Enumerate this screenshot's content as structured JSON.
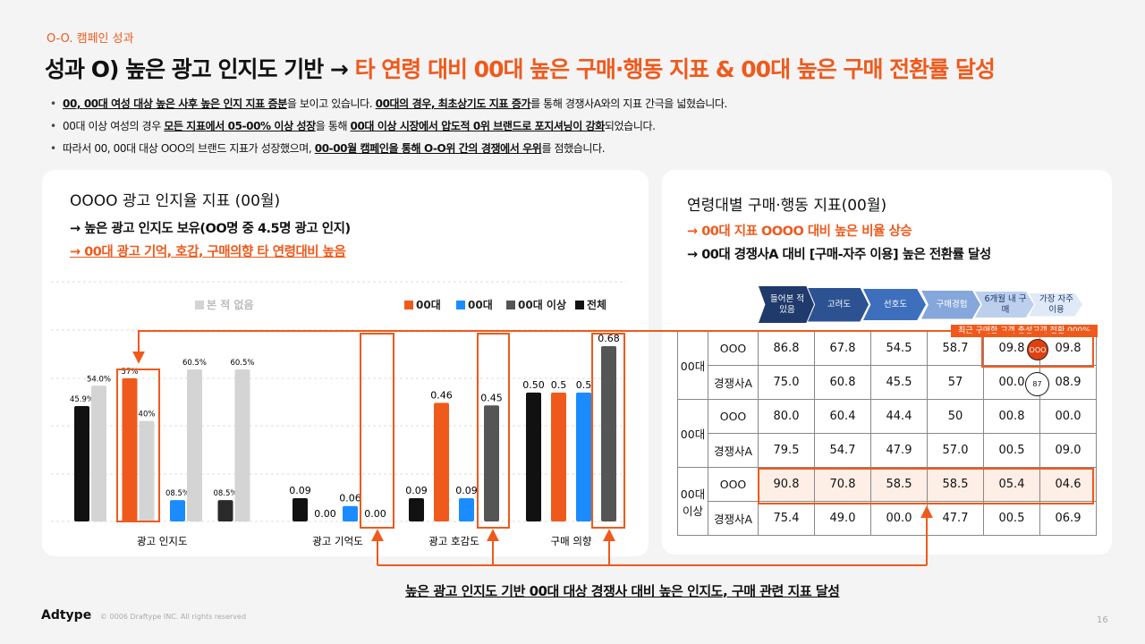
{
  "header": {
    "tag": "O-O. 캠페인 성과",
    "title": [
      {
        "text": "성과 O) 높은 광고 인지도 기반 → ",
        "accent": false
      },
      {
        "text": "타 연령 대비 00대 높은 구매·행동 지표 & 00대 높은 구매 전환률 달성",
        "accent": true
      }
    ]
  },
  "bullets": [
    [
      {
        "text": "00, 00대 여성 대상 높은 사후 높은 인지 지표 증분",
        "strong": true
      },
      {
        "text": "을 보이고 있습니다. ",
        "strong": false
      },
      {
        "text": "00대의 경우, 최초상기도 지표 증가",
        "strong": true
      },
      {
        "text": "를 통해 경쟁사A와의 지표 간극을 넓혔습니다.",
        "strong": false
      }
    ],
    [
      {
        "text": "00대 이상 여성의 경우 ",
        "strong": false
      },
      {
        "text": "모든 지표에서 05-00% 이상 성장",
        "strong": true
      },
      {
        "text": "을 통해 ",
        "strong": false
      },
      {
        "text": "00대 이상 시장에서 압도적 0위 브랜드로 포지셔닝이 강화",
        "strong": true
      },
      {
        "text": "되었습니다.",
        "strong": false
      }
    ],
    [
      {
        "text": "따라서 00, 00대 대상 OOO의 브랜드 지표가 성장했으며, ",
        "strong": false
      },
      {
        "text": "00-00월 캠페인을 통해 O-O위 간의 경쟁에서 우위",
        "strong": true
      },
      {
        "text": "를 점했습니다.",
        "strong": false
      }
    ]
  ],
  "left_card": {
    "title": "OOOO 광고 인지율 지표 (00월)",
    "lines": [
      {
        "text": "→ 높은 광고 인지도 보유(OO명 중 4.5명 광고 인지)",
        "accent": false
      },
      {
        "text": "→ 00대 광고 기억, 호감, 구매의향 타 연령대비 높음",
        "accent": true
      }
    ]
  },
  "chart_data": {
    "type": "bar",
    "legend": [
      {
        "name": "본 적 없음",
        "color": "#d4d4d4"
      },
      {
        "name": "00대",
        "color": "#ef5a1c"
      },
      {
        "name": "00대",
        "color": "#1a8cff"
      },
      {
        "name": "00대 이상",
        "color": "#555555"
      },
      {
        "name": "전체",
        "color": "#111111"
      }
    ],
    "groups": [
      {
        "category": "광고 인지도",
        "colors": [
          "#111111",
          "#d4d4d4",
          "#ef5a1c",
          "#d4d4d4",
          "#1a8cff",
          "#d4d4d4",
          "#2a2a2a",
          "#d4d4d4"
        ],
        "values": [
          45.9,
          54.0,
          57,
          40,
          8.5,
          60.5,
          8.5,
          60.5
        ],
        "value_labels": [
          "45.9%",
          "54.0%",
          "57%",
          "40%",
          "08.5%",
          "60.5%",
          "08.5%",
          "60.5%"
        ]
      },
      {
        "category": "광고 기억도",
        "colors": [
          "#111111",
          "#ef5a1c",
          "#1a8cff",
          "#555555"
        ],
        "values": [
          0.09,
          0,
          0.06,
          0
        ],
        "value_labels": [
          "0.09",
          "0.00",
          "0.06",
          "0.00"
        ]
      },
      {
        "category": "광고 호감도",
        "colors": [
          "#111111",
          "#ef5a1c",
          "#1a8cff",
          "#555555"
        ],
        "values": [
          0.09,
          0.46,
          0.09,
          0.45
        ],
        "value_labels": [
          "0.09",
          "0.46",
          "0.09",
          "0.45"
        ]
      },
      {
        "category": "구매 의향",
        "colors": [
          "#111111",
          "#ef5a1c",
          "#1a8cff",
          "#555555"
        ],
        "values": [
          0.5,
          0.5,
          0.5,
          0.68
        ],
        "value_labels": [
          "0.50",
          "0.5",
          "0.5",
          "0.68"
        ]
      }
    ]
  },
  "right_card": {
    "title": "연령대별 구매·행동 지표(00월)",
    "lines": [
      {
        "text": "→ 00대 지표 OOOO 대비 높은 비율 상승",
        "accent": true
      },
      {
        "text": "→ 00대 경쟁사A 대비 [구매-자주 이용] 높은 전환률 달성",
        "accent": false
      }
    ]
  },
  "table": {
    "stages": [
      "들어본 적 있음",
      "고려도",
      "선호도",
      "구매경험",
      "6개월 내 구매",
      "가장 자주 이용"
    ],
    "groups": [
      {
        "label": "00대",
        "rows": [
          {
            "name": "OOO",
            "cells": [
              "86.8",
              "67.8",
              "54.5",
              "58.7",
              "09.8",
              "09.8"
            ]
          },
          {
            "name": "경쟁사A",
            "cells": [
              "75.0",
              "60.8",
              "45.5",
              "57",
              "00.0",
              "08.9"
            ]
          }
        ]
      },
      {
        "label": "00대",
        "rows": [
          {
            "name": "OOO",
            "cells": [
              "80.0",
              "60.4",
              "44.4",
              "50",
              "00.8",
              "00.0"
            ]
          },
          {
            "name": "경쟁사A",
            "cells": [
              "79.5",
              "54.7",
              "47.9",
              "57.0",
              "00.5",
              "09.0"
            ]
          }
        ]
      },
      {
        "label": "00대 이상",
        "rows": [
          {
            "name": "OOO",
            "cells": [
              "90.8",
              "70.8",
              "58.5",
              "58.5",
              "05.4",
              "04.6"
            ]
          },
          {
            "name": "경쟁사A",
            "cells": [
              "75.4",
              "49.0",
              "00.0",
              "47.7",
              "00.5",
              "06.9"
            ]
          }
        ]
      }
    ],
    "callout": "최근 구매한 고객 충성고객 전환 000%",
    "circle_marks": [
      "OOO",
      "87"
    ]
  },
  "conclusion": "높은 광고 인지도 기반 00대 대상 경쟁사 대비 높은 인지도, 구매 관련 지표 달성",
  "footer": {
    "brand": "Adtype",
    "copyright": "© 0006 Draftype INC. All rights reserved",
    "page": "16"
  }
}
